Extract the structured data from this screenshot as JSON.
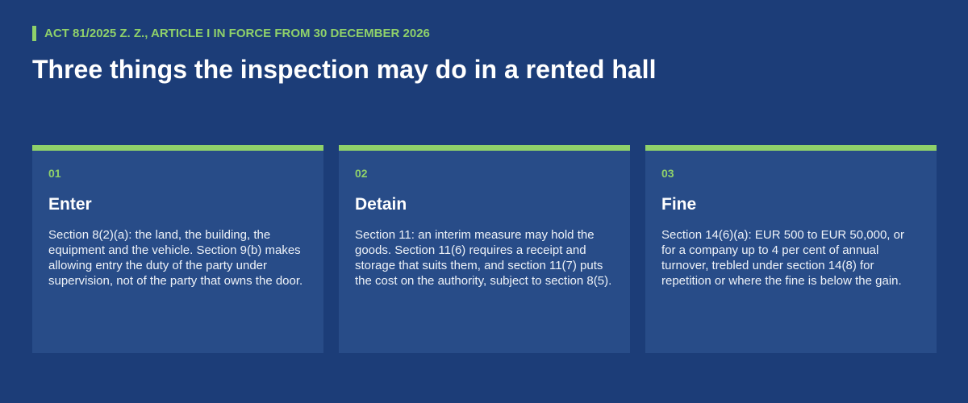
{
  "header": {
    "eyebrow": "ACT 81/2025 Z. Z., ARTICLE I IN FORCE FROM 30 DECEMBER 2026",
    "title": "Three things the inspection may do in a rented hall"
  },
  "cards": [
    {
      "number": "01",
      "title": "Enter",
      "text": "Section 8(2)(a): the land, the building, the equipment and the vehicle. Section 9(b) makes allowing entry the duty of the party under supervision, not of the party that owns the door."
    },
    {
      "number": "02",
      "title": "Detain",
      "text": "Section 11: an interim measure may hold the goods. Section 11(6) requires a receipt and storage that suits them, and section 11(7) puts the cost on the authority, subject to section 8(5)."
    },
    {
      "number": "03",
      "title": "Fine",
      "text": "Section 14(6)(a): EUR 500 to EUR 50,000, or for a company up to 4 per cent of annual turnover, trebled under section 14(8) for repetition or where the fine is below the gain."
    }
  ]
}
